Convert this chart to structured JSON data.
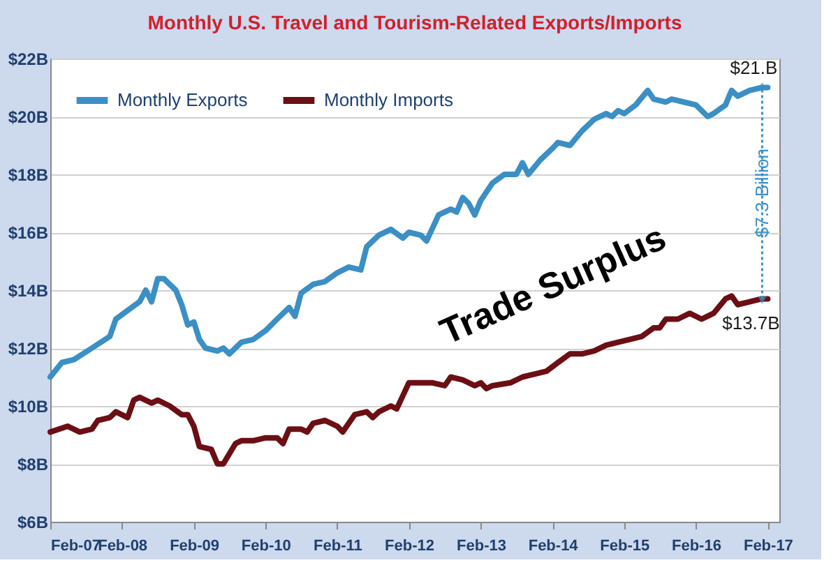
{
  "chart_data": {
    "type": "line",
    "title": "Monthly  U.S. Travel and Tourism-Related Exports/Imports",
    "x": [
      "2007-02",
      "2007-04",
      "2007-06",
      "2007-09",
      "2007-12",
      "2008-01",
      "2008-03",
      "2008-05",
      "2008-06",
      "2008-07",
      "2008-08",
      "2008-09",
      "2008-10",
      "2008-11",
      "2008-12",
      "2009-01",
      "2009-02",
      "2009-03",
      "2009-04",
      "2009-06",
      "2009-07",
      "2009-08",
      "2009-10",
      "2009-12",
      "2010-02",
      "2010-04",
      "2010-06",
      "2010-07",
      "2010-08",
      "2010-10",
      "2010-12",
      "2011-02",
      "2011-04",
      "2011-06",
      "2011-07",
      "2011-09",
      "2011-11",
      "2012-01",
      "2012-02",
      "2012-04",
      "2012-05",
      "2012-07",
      "2012-09",
      "2012-10",
      "2012-11",
      "2012-12",
      "2013-01",
      "2013-02",
      "2013-04",
      "2013-06",
      "2013-08",
      "2013-09",
      "2013-10",
      "2013-12",
      "2014-02",
      "2014-03",
      "2014-05",
      "2014-07",
      "2014-09",
      "2014-11",
      "2014-12",
      "2015-01",
      "2015-02",
      "2015-04",
      "2015-06",
      "2015-07",
      "2015-09",
      "2015-10",
      "2015-12",
      "2016-02",
      "2016-04",
      "2016-05",
      "2016-07",
      "2016-08",
      "2016-09",
      "2016-11",
      "2017-01",
      "2017-02"
    ],
    "series": [
      {
        "name": "Monthly Exports",
        "color": "#3b8fc4",
        "values": [
          11.0,
          11.5,
          11.6,
          12.0,
          12.4,
          13.0,
          13.3,
          13.6,
          14.0,
          13.6,
          14.4,
          14.4,
          14.2,
          14.0,
          13.5,
          12.8,
          12.9,
          12.3,
          12.0,
          11.9,
          12.0,
          11.8,
          12.2,
          12.3,
          12.6,
          13.0,
          13.4,
          13.1,
          13.9,
          14.2,
          14.3,
          14.6,
          14.8,
          14.7,
          15.5,
          15.9,
          16.1,
          15.8,
          16.0,
          15.9,
          15.7,
          16.6,
          16.8,
          16.7,
          17.2,
          17.0,
          16.6,
          17.1,
          17.7,
          18.0,
          18.0,
          18.4,
          18.0,
          18.5,
          18.9,
          19.1,
          19.0,
          19.5,
          19.9,
          20.1,
          20.0,
          20.2,
          20.1,
          20.4,
          20.9,
          20.6,
          20.5,
          20.6,
          20.5,
          20.4,
          20.0,
          20.1,
          20.4,
          20.9,
          20.7,
          20.9,
          21.0,
          21.0
        ]
      },
      {
        "name": "Monthly Imports",
        "color": "#6b0f14",
        "x": [
          "2007-02",
          "2007-05",
          "2007-07",
          "2007-09",
          "2007-10",
          "2007-12",
          "2008-01",
          "2008-03",
          "2008-04",
          "2008-05",
          "2008-07",
          "2008-08",
          "2008-10",
          "2008-12",
          "2009-01",
          "2009-02",
          "2009-03",
          "2009-05",
          "2009-06",
          "2009-07",
          "2009-09",
          "2009-10",
          "2009-12",
          "2010-02",
          "2010-04",
          "2010-05",
          "2010-06",
          "2010-08",
          "2010-09",
          "2010-10",
          "2010-12",
          "2011-02",
          "2011-03",
          "2011-05",
          "2011-07",
          "2011-08",
          "2011-09",
          "2011-11",
          "2011-12",
          "2012-02",
          "2012-04",
          "2012-06",
          "2012-08",
          "2012-09",
          "2012-11",
          "2013-01",
          "2013-02",
          "2013-03",
          "2013-04",
          "2013-07",
          "2013-09",
          "2013-11",
          "2014-01",
          "2014-03",
          "2014-05",
          "2014-07",
          "2014-09",
          "2014-11",
          "2015-01",
          "2015-03",
          "2015-05",
          "2015-07",
          "2015-08",
          "2015-09",
          "2015-11",
          "2016-01",
          "2016-03",
          "2016-05",
          "2016-07",
          "2016-08",
          "2016-09",
          "2016-11",
          "2017-01",
          "2017-02"
        ],
        "values": [
          9.1,
          9.3,
          9.1,
          9.2,
          9.5,
          9.6,
          9.8,
          9.6,
          10.2,
          10.3,
          10.1,
          10.2,
          10.0,
          9.7,
          9.7,
          9.3,
          8.6,
          8.5,
          8.0,
          8.0,
          8.7,
          8.8,
          8.8,
          8.9,
          8.9,
          8.7,
          9.2,
          9.2,
          9.1,
          9.4,
          9.5,
          9.3,
          9.1,
          9.7,
          9.8,
          9.6,
          9.8,
          10.0,
          9.9,
          10.8,
          10.8,
          10.8,
          10.7,
          11.0,
          10.9,
          10.7,
          10.8,
          10.6,
          10.7,
          10.8,
          11.0,
          11.1,
          11.2,
          11.5,
          11.8,
          11.8,
          11.9,
          12.1,
          12.2,
          12.3,
          12.4,
          12.7,
          12.7,
          13.0,
          13.0,
          13.2,
          13.0,
          13.2,
          13.7,
          13.8,
          13.5,
          13.6,
          13.7,
          13.7
        ]
      }
    ],
    "xlim": [
      "2007-02",
      "2017-04"
    ],
    "xticks": [
      {
        "value": "2007-02",
        "label": "Feb-07"
      },
      {
        "value": "2008-02",
        "label": "Feb-08"
      },
      {
        "value": "2009-02",
        "label": "Feb-09"
      },
      {
        "value": "2010-02",
        "label": "Feb-10"
      },
      {
        "value": "2011-02",
        "label": "Feb-11"
      },
      {
        "value": "2012-02",
        "label": "Feb-12"
      },
      {
        "value": "2013-02",
        "label": "Feb-13"
      },
      {
        "value": "2014-02",
        "label": "Feb-14"
      },
      {
        "value": "2015-02",
        "label": "Feb-15"
      },
      {
        "value": "2016-02",
        "label": "Feb-16"
      },
      {
        "value": "2017-02",
        "label": "Feb-17"
      }
    ],
    "ylim": [
      6,
      22
    ],
    "yticks": [
      {
        "value": 6,
        "label": "$6B"
      },
      {
        "value": 8,
        "label": "$8B"
      },
      {
        "value": 10,
        "label": "$10B"
      },
      {
        "value": 12,
        "label": "$12B"
      },
      {
        "value": 14,
        "label": "$14B"
      },
      {
        "value": 16,
        "label": "$16B"
      },
      {
        "value": 18,
        "label": "$18B"
      },
      {
        "value": 20,
        "label": "$20B"
      },
      {
        "value": 22,
        "label": "$22B"
      }
    ],
    "annotations": [
      {
        "text": "$21.B",
        "x": "2017-02",
        "y": 21.0
      },
      {
        "text": "$13.7B",
        "x": "2017-02",
        "y": 13.7
      },
      "$7.3 Billion",
      "Trade Surplus"
    ],
    "grid": "y",
    "legend": "top left",
    "marker": "none",
    "line_style": "solid"
  }
}
